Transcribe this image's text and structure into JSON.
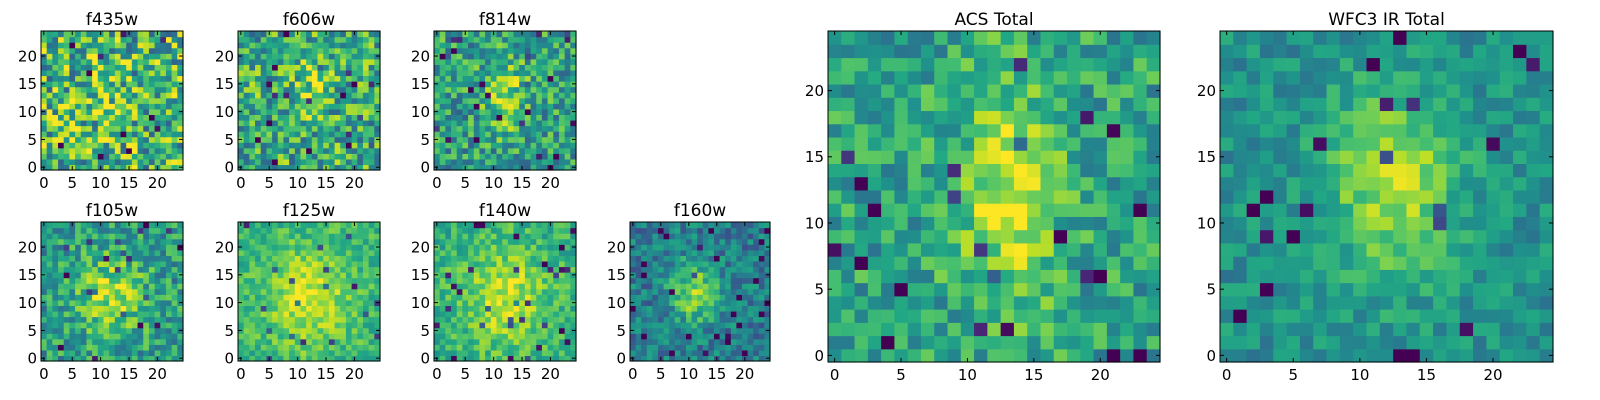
{
  "figure": {
    "description_free": true
  },
  "chart_data": [
    {
      "type": "heatmap",
      "title": "f435w",
      "grid": [
        25,
        25
      ],
      "x_ticks": [
        "0",
        "5",
        "10",
        "15",
        "20"
      ],
      "y_ticks": [
        "0",
        "5",
        "10",
        "15",
        "20"
      ],
      "xlim": [
        -0.5,
        24.5
      ],
      "ylim": [
        -0.5,
        24.5
      ],
      "colormap": "viridis",
      "character": "noise"
    },
    {
      "type": "heatmap",
      "title": "f606w",
      "grid": [
        25,
        25
      ],
      "x_ticks": [
        "0",
        "5",
        "10",
        "15",
        "20"
      ],
      "y_ticks": [
        "0",
        "5",
        "10",
        "15",
        "20"
      ],
      "xlim": [
        -0.5,
        24.5
      ],
      "ylim": [
        -0.5,
        24.5
      ],
      "colormap": "viridis",
      "character": "faint source"
    },
    {
      "type": "heatmap",
      "title": "f814w",
      "grid": [
        25,
        25
      ],
      "x_ticks": [
        "0",
        "5",
        "10",
        "15",
        "20"
      ],
      "y_ticks": [
        "0",
        "5",
        "10",
        "15",
        "20"
      ],
      "xlim": [
        -0.5,
        24.5
      ],
      "ylim": [
        -0.5,
        24.5
      ],
      "colormap": "viridis",
      "character": "source"
    },
    {
      "type": "heatmap",
      "title": "f105w",
      "grid": [
        25,
        25
      ],
      "x_ticks": [
        "0",
        "5",
        "10",
        "15",
        "20"
      ],
      "y_ticks": [
        "0",
        "5",
        "10",
        "15",
        "20"
      ],
      "xlim": [
        -0.5,
        24.5
      ],
      "ylim": [
        -0.5,
        24.5
      ],
      "colormap": "viridis",
      "character": "source"
    },
    {
      "type": "heatmap",
      "title": "f125w",
      "grid": [
        25,
        25
      ],
      "x_ticks": [
        "0",
        "5",
        "10",
        "15",
        "20"
      ],
      "y_ticks": [
        "0",
        "5",
        "10",
        "15",
        "20"
      ],
      "xlim": [
        -0.5,
        24.5
      ],
      "ylim": [
        -0.5,
        24.5
      ],
      "colormap": "viridis",
      "character": "smooth source"
    },
    {
      "type": "heatmap",
      "title": "f140w",
      "grid": [
        25,
        25
      ],
      "x_ticks": [
        "0",
        "5",
        "10",
        "15",
        "20"
      ],
      "y_ticks": [
        "0",
        "5",
        "10",
        "15",
        "20"
      ],
      "xlim": [
        -0.5,
        24.5
      ],
      "ylim": [
        -0.5,
        24.5
      ],
      "colormap": "viridis",
      "character": "smooth source"
    },
    {
      "type": "heatmap",
      "title": "f160w",
      "grid": [
        25,
        25
      ],
      "x_ticks": [
        "0",
        "5",
        "10",
        "15",
        "20"
      ],
      "y_ticks": [
        "0",
        "5",
        "10",
        "15",
        "20"
      ],
      "xlim": [
        -0.5,
        24.5
      ],
      "ylim": [
        -0.5,
        24.5
      ],
      "colormap": "viridis",
      "character": "compact source"
    },
    {
      "type": "heatmap",
      "title": "ACS Total",
      "grid": [
        25,
        25
      ],
      "x_ticks": [
        "0",
        "5",
        "10",
        "15",
        "20"
      ],
      "y_ticks": [
        "0",
        "5",
        "10",
        "15",
        "20"
      ],
      "xlim": [
        -0.5,
        24.5
      ],
      "ylim": [
        -0.5,
        24.5
      ],
      "colormap": "viridis",
      "character": "elongated source"
    },
    {
      "type": "heatmap",
      "title": "WFC3 IR Total",
      "grid": [
        25,
        25
      ],
      "x_ticks": [
        "0",
        "5",
        "10",
        "15",
        "20"
      ],
      "y_ticks": [
        "0",
        "5",
        "10",
        "15",
        "20"
      ],
      "xlim": [
        -0.5,
        24.5
      ],
      "ylim": [
        -0.5,
        24.5
      ],
      "colormap": "viridis",
      "character": "extended source"
    }
  ]
}
